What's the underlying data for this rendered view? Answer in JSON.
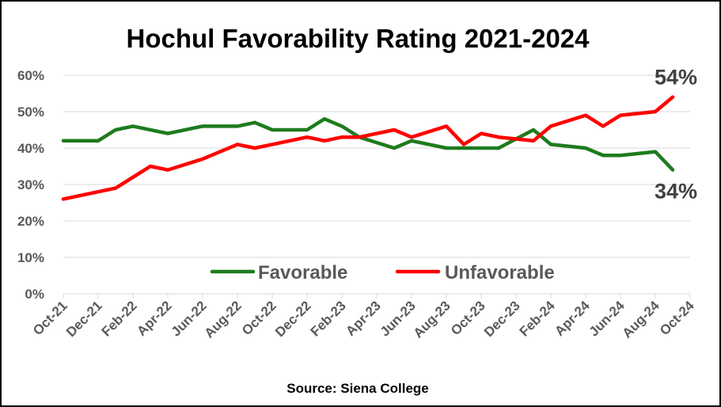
{
  "chart_data": {
    "type": "line",
    "title": "Hochul Favorability Rating 2021-2024",
    "source": "Source: Siena College",
    "xlabel": "",
    "ylabel": "",
    "ylim": [
      0,
      60
    ],
    "y_ticks": [
      "0%",
      "10%",
      "20%",
      "30%",
      "40%",
      "50%",
      "60%"
    ],
    "x_ticks": [
      "Oct-21",
      "Dec-21",
      "Feb-22",
      "Apr-22",
      "Jun-22",
      "Aug-22",
      "Oct-22",
      "Dec-22",
      "Feb-23",
      "Apr-23",
      "Jun-23",
      "Aug-23",
      "Oct-23",
      "Dec-23",
      "Feb-24",
      "Apr-24",
      "Jun-24",
      "Aug-24",
      "Oct-24"
    ],
    "grid": true,
    "legend_position": "bottom-center inside plot",
    "series": [
      {
        "name": "Favorable",
        "color": "#1e7b1e",
        "points": [
          {
            "x": "2021-10",
            "y": 42
          },
          {
            "x": "2021-12",
            "y": 42
          },
          {
            "x": "2022-01",
            "y": 45
          },
          {
            "x": "2022-02",
            "y": 46
          },
          {
            "x": "2022-04",
            "y": 44
          },
          {
            "x": "2022-06",
            "y": 46
          },
          {
            "x": "2022-08",
            "y": 46
          },
          {
            "x": "2022-09",
            "y": 47
          },
          {
            "x": "2022-10",
            "y": 45
          },
          {
            "x": "2022-12",
            "y": 45
          },
          {
            "x": "2023-01",
            "y": 48
          },
          {
            "x": "2023-02",
            "y": 46
          },
          {
            "x": "2023-03",
            "y": 43
          },
          {
            "x": "2023-05",
            "y": 40
          },
          {
            "x": "2023-06",
            "y": 42
          },
          {
            "x": "2023-08",
            "y": 40
          },
          {
            "x": "2023-10",
            "y": 40
          },
          {
            "x": "2023-11",
            "y": 40
          },
          {
            "x": "2024-01",
            "y": 45
          },
          {
            "x": "2024-02",
            "y": 41
          },
          {
            "x": "2024-04",
            "y": 40
          },
          {
            "x": "2024-05",
            "y": 38
          },
          {
            "x": "2024-06",
            "y": 38
          },
          {
            "x": "2024-08",
            "y": 39
          },
          {
            "x": "2024-09",
            "y": 34
          }
        ]
      },
      {
        "name": "Unfavorable",
        "color": "#ff0000",
        "points": [
          {
            "x": "2021-10",
            "y": 26
          },
          {
            "x": "2021-12",
            "y": 28
          },
          {
            "x": "2022-01",
            "y": 29
          },
          {
            "x": "2022-02",
            "y": 32
          },
          {
            "x": "2022-03",
            "y": 35
          },
          {
            "x": "2022-04",
            "y": 34
          },
          {
            "x": "2022-06",
            "y": 37
          },
          {
            "x": "2022-08",
            "y": 41
          },
          {
            "x": "2022-09",
            "y": 40
          },
          {
            "x": "2022-10",
            "y": 41
          },
          {
            "x": "2022-12",
            "y": 43
          },
          {
            "x": "2023-01",
            "y": 42
          },
          {
            "x": "2023-02",
            "y": 43
          },
          {
            "x": "2023-03",
            "y": 43
          },
          {
            "x": "2023-05",
            "y": 45
          },
          {
            "x": "2023-06",
            "y": 43
          },
          {
            "x": "2023-08",
            "y": 46
          },
          {
            "x": "2023-09",
            "y": 41
          },
          {
            "x": "2023-10",
            "y": 44
          },
          {
            "x": "2023-11",
            "y": 43
          },
          {
            "x": "2024-01",
            "y": 42
          },
          {
            "x": "2024-02",
            "y": 46
          },
          {
            "x": "2024-04",
            "y": 49
          },
          {
            "x": "2024-05",
            "y": 46
          },
          {
            "x": "2024-06",
            "y": 49
          },
          {
            "x": "2024-08",
            "y": 50
          },
          {
            "x": "2024-09",
            "y": 54
          }
        ]
      }
    ],
    "annotations": [
      {
        "text": "54%",
        "series": "Unfavorable"
      },
      {
        "text": "34%",
        "series": "Favorable"
      }
    ]
  }
}
